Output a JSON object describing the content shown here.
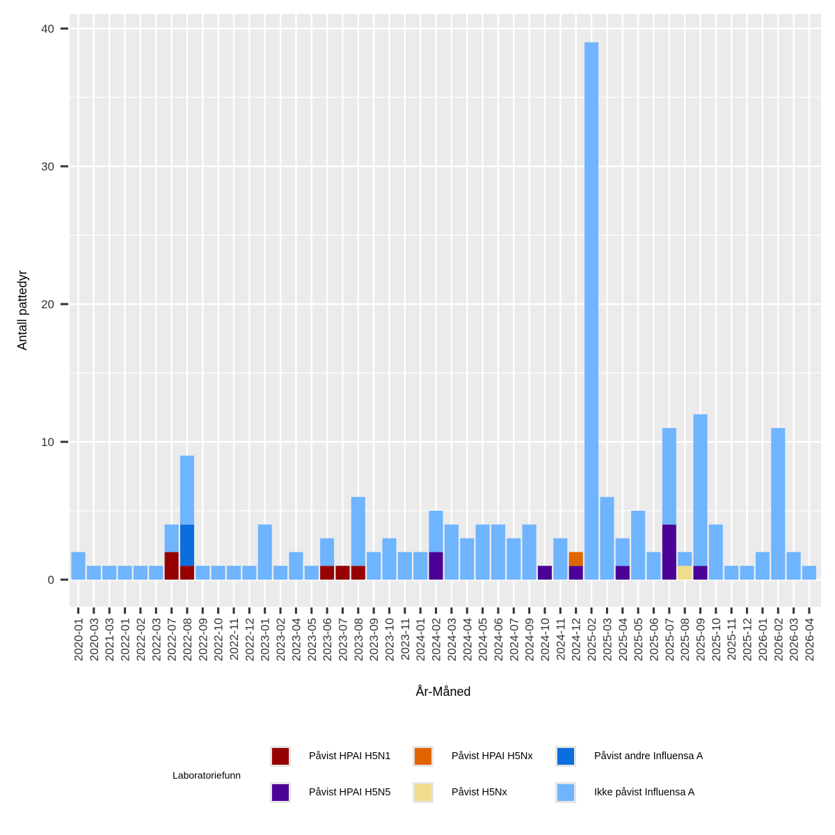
{
  "chart_data": {
    "type": "bar",
    "stacked": true,
    "xlabel": "År-Måned",
    "ylabel": "Antall pattedyr",
    "ylim": [
      -2,
      41
    ],
    "yticks": [
      0,
      10,
      20,
      30,
      40
    ],
    "grid": true,
    "legend_title": "Laboratoriefunn",
    "legend_position": "bottom",
    "categories": [
      "2020-01",
      "2020-03",
      "2021-03",
      "2022-01",
      "2022-02",
      "2022-03",
      "2022-07",
      "2022-08",
      "2022-09",
      "2022-10",
      "2022-11",
      "2022-12",
      "2023-01",
      "2023-02",
      "2023-04",
      "2023-05",
      "2023-06",
      "2023-07",
      "2023-08",
      "2023-09",
      "2023-10",
      "2023-11",
      "2024-01",
      "2024-02",
      "2024-03",
      "2024-04",
      "2024-05",
      "2024-06",
      "2024-07",
      "2024-09",
      "2024-10",
      "2024-11",
      "2024-12",
      "2025-02",
      "2025-03",
      "2025-04",
      "2025-05",
      "2025-06",
      "2025-07",
      "2025-08",
      "2025-09",
      "2025-10",
      "2025-11",
      "2025-12",
      "2026-01",
      "2026-02",
      "2026-03",
      "2026-04"
    ],
    "series": [
      {
        "name": "Påvist HPAI H5N1",
        "color": "#960000",
        "values": [
          0,
          0,
          0,
          0,
          0,
          0,
          2,
          1,
          0,
          0,
          0,
          0,
          0,
          0,
          0,
          0,
          1,
          1,
          1,
          0,
          0,
          0,
          0,
          0,
          0,
          0,
          0,
          0,
          0,
          0,
          0,
          0,
          0,
          0,
          0,
          0,
          0,
          0,
          0,
          0,
          0,
          0,
          0,
          0,
          0,
          0,
          0,
          0
        ]
      },
      {
        "name": "Påvist HPAI H5N5",
        "color": "#4b0096",
        "values": [
          0,
          0,
          0,
          0,
          0,
          0,
          0,
          0,
          0,
          0,
          0,
          0,
          0,
          0,
          0,
          0,
          0,
          0,
          0,
          0,
          0,
          0,
          0,
          2,
          0,
          0,
          0,
          0,
          0,
          0,
          1,
          0,
          1,
          0,
          0,
          1,
          0,
          0,
          4,
          0,
          1,
          0,
          0,
          0,
          0,
          0,
          0,
          0
        ]
      },
      {
        "name": "Påvist HPAI H5Nx",
        "color": "#e06400",
        "values": [
          0,
          0,
          0,
          0,
          0,
          0,
          0,
          0,
          0,
          0,
          0,
          0,
          0,
          0,
          0,
          0,
          0,
          0,
          0,
          0,
          0,
          0,
          0,
          0,
          0,
          0,
          0,
          0,
          0,
          0,
          0,
          0,
          1,
          0,
          0,
          0,
          0,
          0,
          0,
          0,
          0,
          0,
          0,
          0,
          0,
          0,
          0,
          0
        ]
      },
      {
        "name": "Påvist H5Nx",
        "color": "#f0dc8c",
        "values": [
          0,
          0,
          0,
          0,
          0,
          0,
          0,
          0,
          0,
          0,
          0,
          0,
          0,
          0,
          0,
          0,
          0,
          0,
          0,
          0,
          0,
          0,
          0,
          0,
          0,
          0,
          0,
          0,
          0,
          0,
          0,
          0,
          0,
          0,
          0,
          0,
          0,
          0,
          0,
          1,
          0,
          0,
          0,
          0,
          0,
          0,
          0,
          0
        ]
      },
      {
        "name": "Påvist andre Influensa A",
        "color": "#0a6edc",
        "values": [
          0,
          0,
          0,
          0,
          0,
          0,
          0,
          3,
          0,
          0,
          0,
          0,
          0,
          0,
          0,
          0,
          0,
          0,
          0,
          0,
          0,
          0,
          0,
          0,
          0,
          0,
          0,
          0,
          0,
          0,
          0,
          0,
          0,
          0,
          0,
          0,
          0,
          0,
          0,
          0,
          0,
          0,
          0,
          0,
          0,
          0,
          0,
          0
        ]
      },
      {
        "name": "Ikke påvist Influensa A",
        "color": "#6eb4ff",
        "values": [
          2,
          1,
          1,
          1,
          1,
          1,
          2,
          5,
          1,
          1,
          1,
          1,
          4,
          1,
          2,
          1,
          2,
          0,
          5,
          2,
          3,
          2,
          2,
          3,
          4,
          3,
          4,
          4,
          3,
          4,
          0,
          3,
          0,
          39,
          6,
          2,
          5,
          2,
          7,
          1,
          11,
          4,
          1,
          1,
          2,
          11,
          2,
          1
        ]
      }
    ]
  }
}
